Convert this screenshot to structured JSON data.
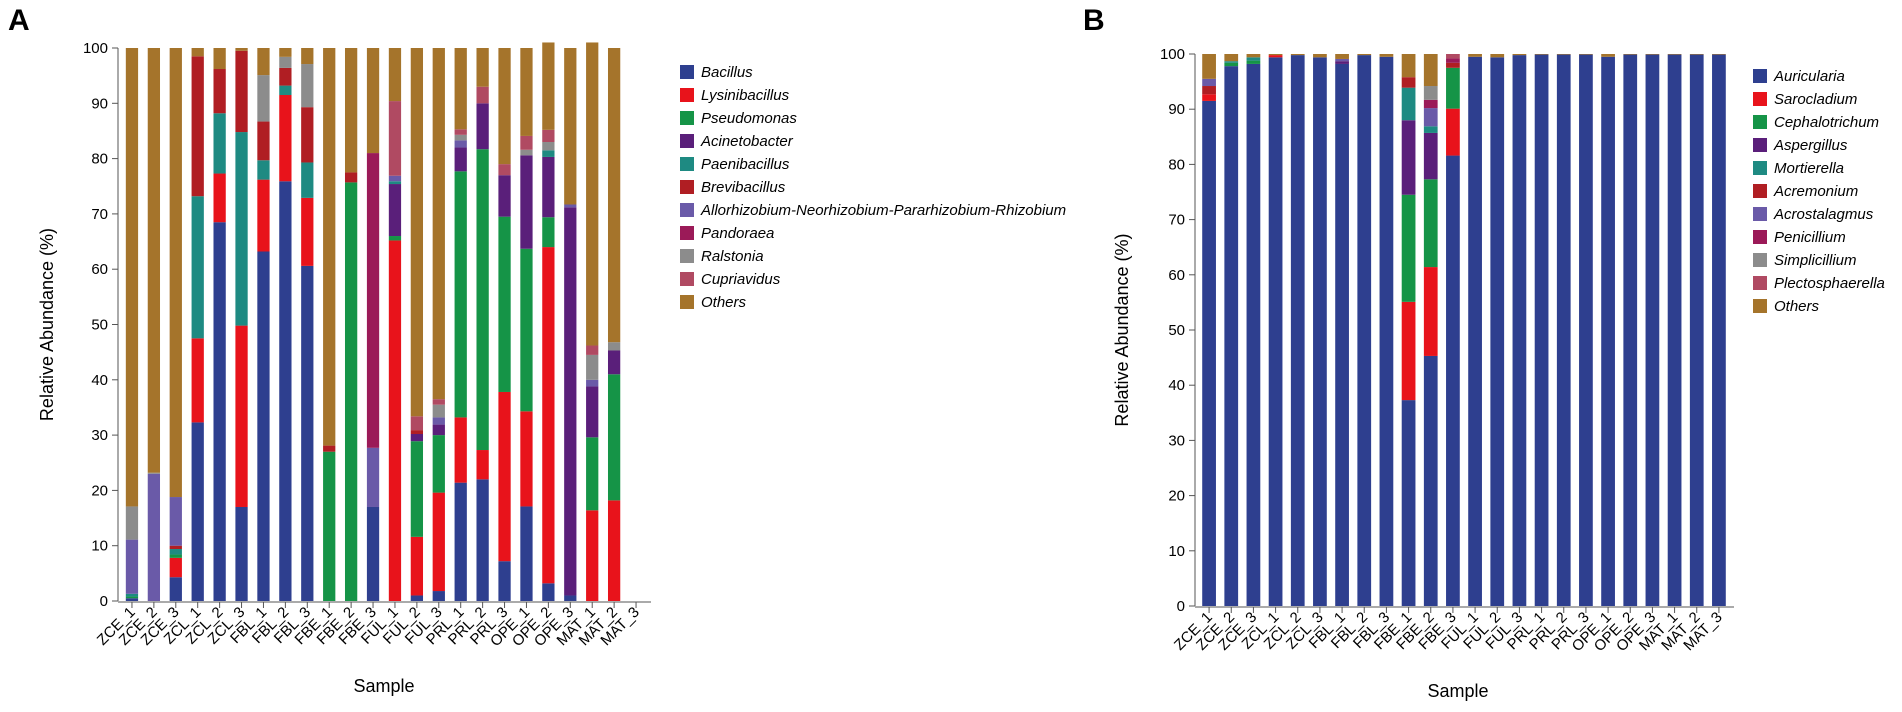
{
  "figure": {
    "panels": [
      "A",
      "B"
    ]
  },
  "chart_data": [
    {
      "type": "bar",
      "stacked": true,
      "panel": "A",
      "title": "",
      "xlabel": "Sample",
      "ylabel": "Relative Abundance (%)",
      "ylim": [
        0,
        100
      ],
      "yticks": [
        0,
        10,
        20,
        30,
        40,
        50,
        60,
        70,
        80,
        90,
        100
      ],
      "legend_position": "right",
      "categories": [
        "ZCE_1",
        "ZCE_2",
        "ZCE_3",
        "ZCL_1",
        "ZCL_2",
        "ZCL_3",
        "FBL_1",
        "FBL_2",
        "FBL_3",
        "FBE_1",
        "FBE_2",
        "FBE_3",
        "FUL_1",
        "FUL_2",
        "FUL_3",
        "PRL_1",
        "PRL_2",
        "PRL_3",
        "OPE_1",
        "OPE_2",
        "OPE_3",
        "MAT_1",
        "MAT_2",
        "MAT_3"
      ],
      "series": [
        {
          "name": "Bacillus",
          "color": "#2e3f8f",
          "values": [
            0.5,
            0,
            4.3,
            32.3,
            68.5,
            17.0,
            63.2,
            75.9,
            60.6,
            0,
            0,
            17.0,
            0,
            1,
            1.8,
            21.4,
            22.0,
            7.2,
            17.1,
            3.2,
            1.0,
            0,
            0,
            0
          ]
        },
        {
          "name": "Lysinibacillus",
          "color": "#e8131b",
          "values": [
            0,
            0,
            3.5,
            15.2,
            8.8,
            32.8,
            13.0,
            15.6,
            12.3,
            0,
            0,
            0,
            65.2,
            10.6,
            17.8,
            11.8,
            5.3,
            30.6,
            17.2,
            60.8,
            0,
            16.4,
            18.2,
            0
          ]
        },
        {
          "name": "Pseudomonas",
          "color": "#159447",
          "values": [
            0.3,
            0,
            0.6,
            0,
            0,
            0,
            0,
            0,
            0,
            27.0,
            75.7,
            0,
            0.8,
            17.3,
            10.4,
            44.5,
            54.4,
            31.7,
            29.4,
            5.4,
            0,
            13.2,
            22.8,
            0
          ]
        },
        {
          "name": "Acinetobacter",
          "color": "#5a1f7a",
          "values": [
            0,
            0,
            0,
            0,
            0,
            0,
            0,
            0,
            0,
            0,
            0,
            0,
            9.4,
            1.3,
            1.9,
            4.3,
            8.3,
            7.5,
            16.9,
            10.9,
            70.2,
            9.2,
            4.3,
            0
          ]
        },
        {
          "name": "Paenibacillus",
          "color": "#1e8a82",
          "values": [
            0.5,
            0,
            1.0,
            25.7,
            10.9,
            35.0,
            3.5,
            1.7,
            6.4,
            0,
            0,
            0,
            0.5,
            0,
            0,
            0,
            0,
            0,
            0,
            1.2,
            0,
            0,
            0,
            0
          ]
        },
        {
          "name": "Brevibacillus",
          "color": "#b01e23",
          "values": [
            0,
            0,
            0.6,
            25.3,
            8.0,
            14.7,
            7.0,
            3.2,
            10.0,
            1.1,
            1.8,
            0,
            0,
            0.7,
            0,
            0,
            0,
            0,
            0,
            0,
            0,
            0,
            0,
            0
          ]
        },
        {
          "name": "Allorhizobium-Neorhizobium-Pararhizobium-Rhizobium",
          "color": "#6a5aa8",
          "values": [
            9.8,
            23.0,
            8.8,
            0,
            0,
            0,
            0,
            0,
            0,
            0,
            0,
            10.7,
            1.0,
            0,
            1.3,
            1.3,
            0,
            0,
            0,
            0,
            0.5,
            1.2,
            0,
            0
          ]
        },
        {
          "name": "Pandoraea",
          "color": "#9b1a58",
          "values": [
            0,
            0,
            0,
            0,
            0,
            0,
            0,
            0,
            0,
            0,
            0,
            53.3,
            0,
            0,
            0,
            0,
            0,
            0,
            0,
            0,
            0,
            0,
            0,
            0
          ]
        },
        {
          "name": "Ralstonia",
          "color": "#8c8c8c",
          "values": [
            6.0,
            0.2,
            0,
            0,
            0,
            0,
            8.4,
            2.0,
            7.8,
            0,
            0,
            0,
            0,
            0,
            2.3,
            1.0,
            0,
            0,
            1.0,
            1.5,
            0,
            4.5,
            1.5,
            0
          ]
        },
        {
          "name": "Cupriavidus",
          "color": "#b04a62",
          "values": [
            0,
            0,
            0,
            0,
            0,
            0,
            0,
            0,
            0,
            0,
            0,
            0,
            13.5,
            2.5,
            1.0,
            1.0,
            3.0,
            2.0,
            2.5,
            2.2,
            0,
            1.7,
            0,
            0
          ]
        },
        {
          "name": "Others",
          "color": "#a5742b",
          "values": [
            82.9,
            76.8,
            81.2,
            1.5,
            3.8,
            0.5,
            4.9,
            1.6,
            2.9,
            71.9,
            22.5,
            19.0,
            9.6,
            66.6,
            63.5,
            14.7,
            7.0,
            21.0,
            15.9,
            15.8,
            28.3,
            54.8,
            53.2,
            0
          ]
        }
      ]
    },
    {
      "type": "bar",
      "stacked": true,
      "panel": "B",
      "title": "",
      "xlabel": "Sample",
      "ylabel": "Relative Abundance (%)",
      "ylim": [
        0,
        100
      ],
      "yticks": [
        0,
        10,
        20,
        30,
        40,
        50,
        60,
        70,
        80,
        90,
        100
      ],
      "legend_position": "right",
      "categories": [
        "ZCE_1",
        "ZCE_2",
        "ZCE_3",
        "ZCL_1",
        "ZCL_2",
        "ZCL_3",
        "FBL_1",
        "FBL_2",
        "FBL_3",
        "FBE_1",
        "FBE_2",
        "FBE_3",
        "FUL_1",
        "FUL_2",
        "FUL_3",
        "PRL_1",
        "PRL_2",
        "PRL_3",
        "OPE_1",
        "OPE_2",
        "OPE_3",
        "MAT_1",
        "MAT_2",
        "MAT_3"
      ],
      "series": [
        {
          "name": "Auricularia",
          "color": "#2e3f8f",
          "values": [
            91.5,
            97.8,
            98.2,
            99.4,
            99.8,
            99.4,
            98.2,
            99.8,
            99.5,
            37.3,
            45.3,
            81.6,
            99.5,
            99.4,
            99.8,
            99.9,
            99.9,
            99.9,
            99.5,
            99.9,
            99.9,
            99.9,
            99.9,
            99.9
          ]
        },
        {
          "name": "Sarocladium",
          "color": "#e8131b",
          "values": [
            1.2,
            0,
            0,
            0.4,
            0,
            0,
            0,
            0,
            0,
            17.8,
            16.1,
            8.5,
            0,
            0,
            0,
            0,
            0,
            0,
            0,
            0,
            0,
            0,
            0,
            0
          ]
        },
        {
          "name": "Cephalotrichum",
          "color": "#159447",
          "values": [
            0,
            0.6,
            0.6,
            0,
            0,
            0,
            0,
            0,
            0,
            19.4,
            15.9,
            7.4,
            0,
            0,
            0,
            0,
            0,
            0,
            0,
            0,
            0,
            0,
            0,
            0
          ]
        },
        {
          "name": "Aspergillus",
          "color": "#5a1f7a",
          "values": [
            0,
            0,
            0,
            0,
            0,
            0,
            0.5,
            0,
            0,
            13.5,
            8.4,
            0,
            0,
            0,
            0,
            0,
            0,
            0,
            0,
            0,
            0,
            0,
            0,
            0
          ]
        },
        {
          "name": "Mortierella",
          "color": "#1e8a82",
          "values": [
            0,
            0.3,
            0.6,
            0,
            0,
            0,
            0,
            0,
            0,
            5.9,
            1.2,
            0,
            0,
            0,
            0,
            0,
            0,
            0,
            0,
            0,
            0,
            0,
            0,
            0
          ]
        },
        {
          "name": "Acremonium",
          "color": "#b01e23",
          "values": [
            1.5,
            0,
            0,
            0,
            0,
            0,
            0,
            0,
            0,
            1.9,
            0,
            0.9,
            0,
            0,
            0,
            0,
            0,
            0,
            0,
            0,
            0,
            0,
            0,
            0
          ]
        },
        {
          "name": "Acrostalagmus",
          "color": "#6a5aa8",
          "values": [
            1.3,
            0,
            0,
            0,
            0,
            0,
            0.4,
            0,
            0,
            0,
            3.3,
            0,
            0,
            0,
            0,
            0,
            0,
            0,
            0,
            0,
            0,
            0,
            0,
            0
          ]
        },
        {
          "name": "Penicillium",
          "color": "#9b1a58",
          "values": [
            0,
            0,
            0,
            0,
            0,
            0,
            0,
            0,
            0,
            0,
            1.5,
            0.8,
            0,
            0,
            0,
            0,
            0,
            0,
            0,
            0,
            0,
            0,
            0,
            0
          ]
        },
        {
          "name": "Simplicillium",
          "color": "#8c8c8c",
          "values": [
            0,
            0,
            0,
            0,
            0,
            0,
            0,
            0,
            0,
            0,
            2.5,
            0,
            0,
            0,
            0,
            0,
            0,
            0,
            0,
            0,
            0,
            0,
            0,
            0
          ]
        },
        {
          "name": "Plectosphaerella",
          "color": "#b04a62",
          "values": [
            0,
            0,
            0,
            0,
            0,
            0,
            0,
            0,
            0,
            0,
            0,
            0.8,
            0,
            0,
            0,
            0,
            0,
            0,
            0,
            0,
            0,
            0,
            0,
            0
          ]
        },
        {
          "name": "Others",
          "color": "#a5742b",
          "values": [
            4.5,
            1.3,
            0.6,
            0.2,
            0.2,
            0.6,
            0.9,
            0.2,
            0.5,
            4.2,
            5.8,
            0,
            0.5,
            0.6,
            0.2,
            0.1,
            0.1,
            0.1,
            0.5,
            0.1,
            0.1,
            0.1,
            0.1,
            0.1
          ]
        }
      ]
    }
  ]
}
